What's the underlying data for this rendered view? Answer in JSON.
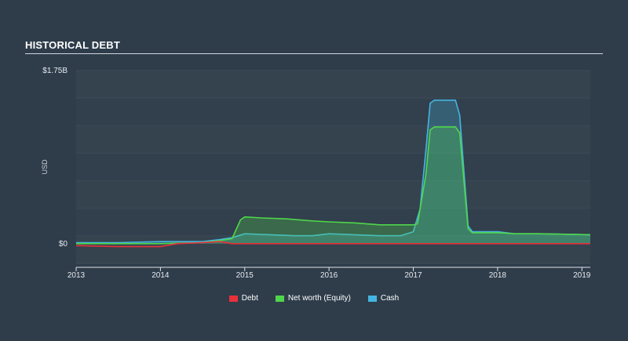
{
  "header": {
    "title": "HISTORICAL DEBT"
  },
  "chart_data": {
    "type": "area",
    "title": "HISTORICAL DEBT",
    "ylabel": "USD",
    "xlabel": "",
    "ylim": [
      -0.2,
      1.75
    ],
    "y_ticks": [
      {
        "value": 1.75,
        "label": "$1.75B"
      },
      {
        "value": 0,
        "label": "$0"
      }
    ],
    "x_ticks": [
      {
        "value": 2013,
        "label": "2013"
      },
      {
        "value": 2014,
        "label": "2014"
      },
      {
        "value": 2015,
        "label": "2015"
      },
      {
        "value": 2016,
        "label": "2016"
      },
      {
        "value": 2017,
        "label": "2017"
      },
      {
        "value": 2018,
        "label": "2018"
      },
      {
        "value": 2019,
        "label": "2019"
      }
    ],
    "xlim": [
      2013,
      2019.1
    ],
    "grid": true,
    "legend_position": "bottom-center",
    "series": [
      {
        "name": "Debt",
        "color": "#e8303a",
        "fill": false,
        "points": [
          [
            2013,
            -0.02
          ],
          [
            2013.5,
            -0.03
          ],
          [
            2014.0,
            -0.03
          ],
          [
            2014.2,
            0.0
          ],
          [
            2014.5,
            0.01
          ],
          [
            2014.7,
            0.02
          ],
          [
            2014.85,
            0.0
          ],
          [
            2015.0,
            0.0
          ],
          [
            2016.0,
            0.0
          ],
          [
            2017.0,
            0.0
          ],
          [
            2018.0,
            0.0
          ],
          [
            2019.1,
            0.0
          ]
        ]
      },
      {
        "name": "Net worth (Equity)",
        "color": "#4fd64b",
        "fill": true,
        "points": [
          [
            2013,
            0.0
          ],
          [
            2013.5,
            0.0
          ],
          [
            2014.0,
            0.0
          ],
          [
            2014.5,
            0.01
          ],
          [
            2014.7,
            0.03
          ],
          [
            2014.85,
            0.05
          ],
          [
            2014.95,
            0.24
          ],
          [
            2015.0,
            0.27
          ],
          [
            2015.2,
            0.26
          ],
          [
            2015.5,
            0.25
          ],
          [
            2015.8,
            0.23
          ],
          [
            2016.0,
            0.22
          ],
          [
            2016.3,
            0.21
          ],
          [
            2016.6,
            0.19
          ],
          [
            2016.85,
            0.19
          ],
          [
            2017.0,
            0.19
          ],
          [
            2017.05,
            0.2
          ],
          [
            2017.15,
            0.7
          ],
          [
            2017.2,
            1.15
          ],
          [
            2017.25,
            1.18
          ],
          [
            2017.5,
            1.18
          ],
          [
            2017.55,
            1.12
          ],
          [
            2017.65,
            0.15
          ],
          [
            2017.7,
            0.11
          ],
          [
            2018.0,
            0.11
          ],
          [
            2018.2,
            0.1
          ],
          [
            2018.5,
            0.1
          ],
          [
            2019.1,
            0.09
          ]
        ]
      },
      {
        "name": "Cash",
        "color": "#44b5e0",
        "fill": true,
        "points": [
          [
            2013,
            0.01
          ],
          [
            2013.5,
            0.01
          ],
          [
            2014.0,
            0.02
          ],
          [
            2014.5,
            0.02
          ],
          [
            2014.7,
            0.04
          ],
          [
            2014.85,
            0.06
          ],
          [
            2015.0,
            0.1
          ],
          [
            2015.3,
            0.09
          ],
          [
            2015.6,
            0.08
          ],
          [
            2015.8,
            0.08
          ],
          [
            2016.0,
            0.1
          ],
          [
            2016.3,
            0.09
          ],
          [
            2016.6,
            0.08
          ],
          [
            2016.85,
            0.08
          ],
          [
            2017.0,
            0.12
          ],
          [
            2017.08,
            0.35
          ],
          [
            2017.15,
            0.95
          ],
          [
            2017.2,
            1.42
          ],
          [
            2017.25,
            1.45
          ],
          [
            2017.5,
            1.45
          ],
          [
            2017.55,
            1.3
          ],
          [
            2017.65,
            0.18
          ],
          [
            2017.7,
            0.12
          ],
          [
            2018.0,
            0.12
          ],
          [
            2018.2,
            0.1
          ],
          [
            2018.5,
            0.1
          ],
          [
            2019.1,
            0.09
          ]
        ]
      }
    ]
  }
}
